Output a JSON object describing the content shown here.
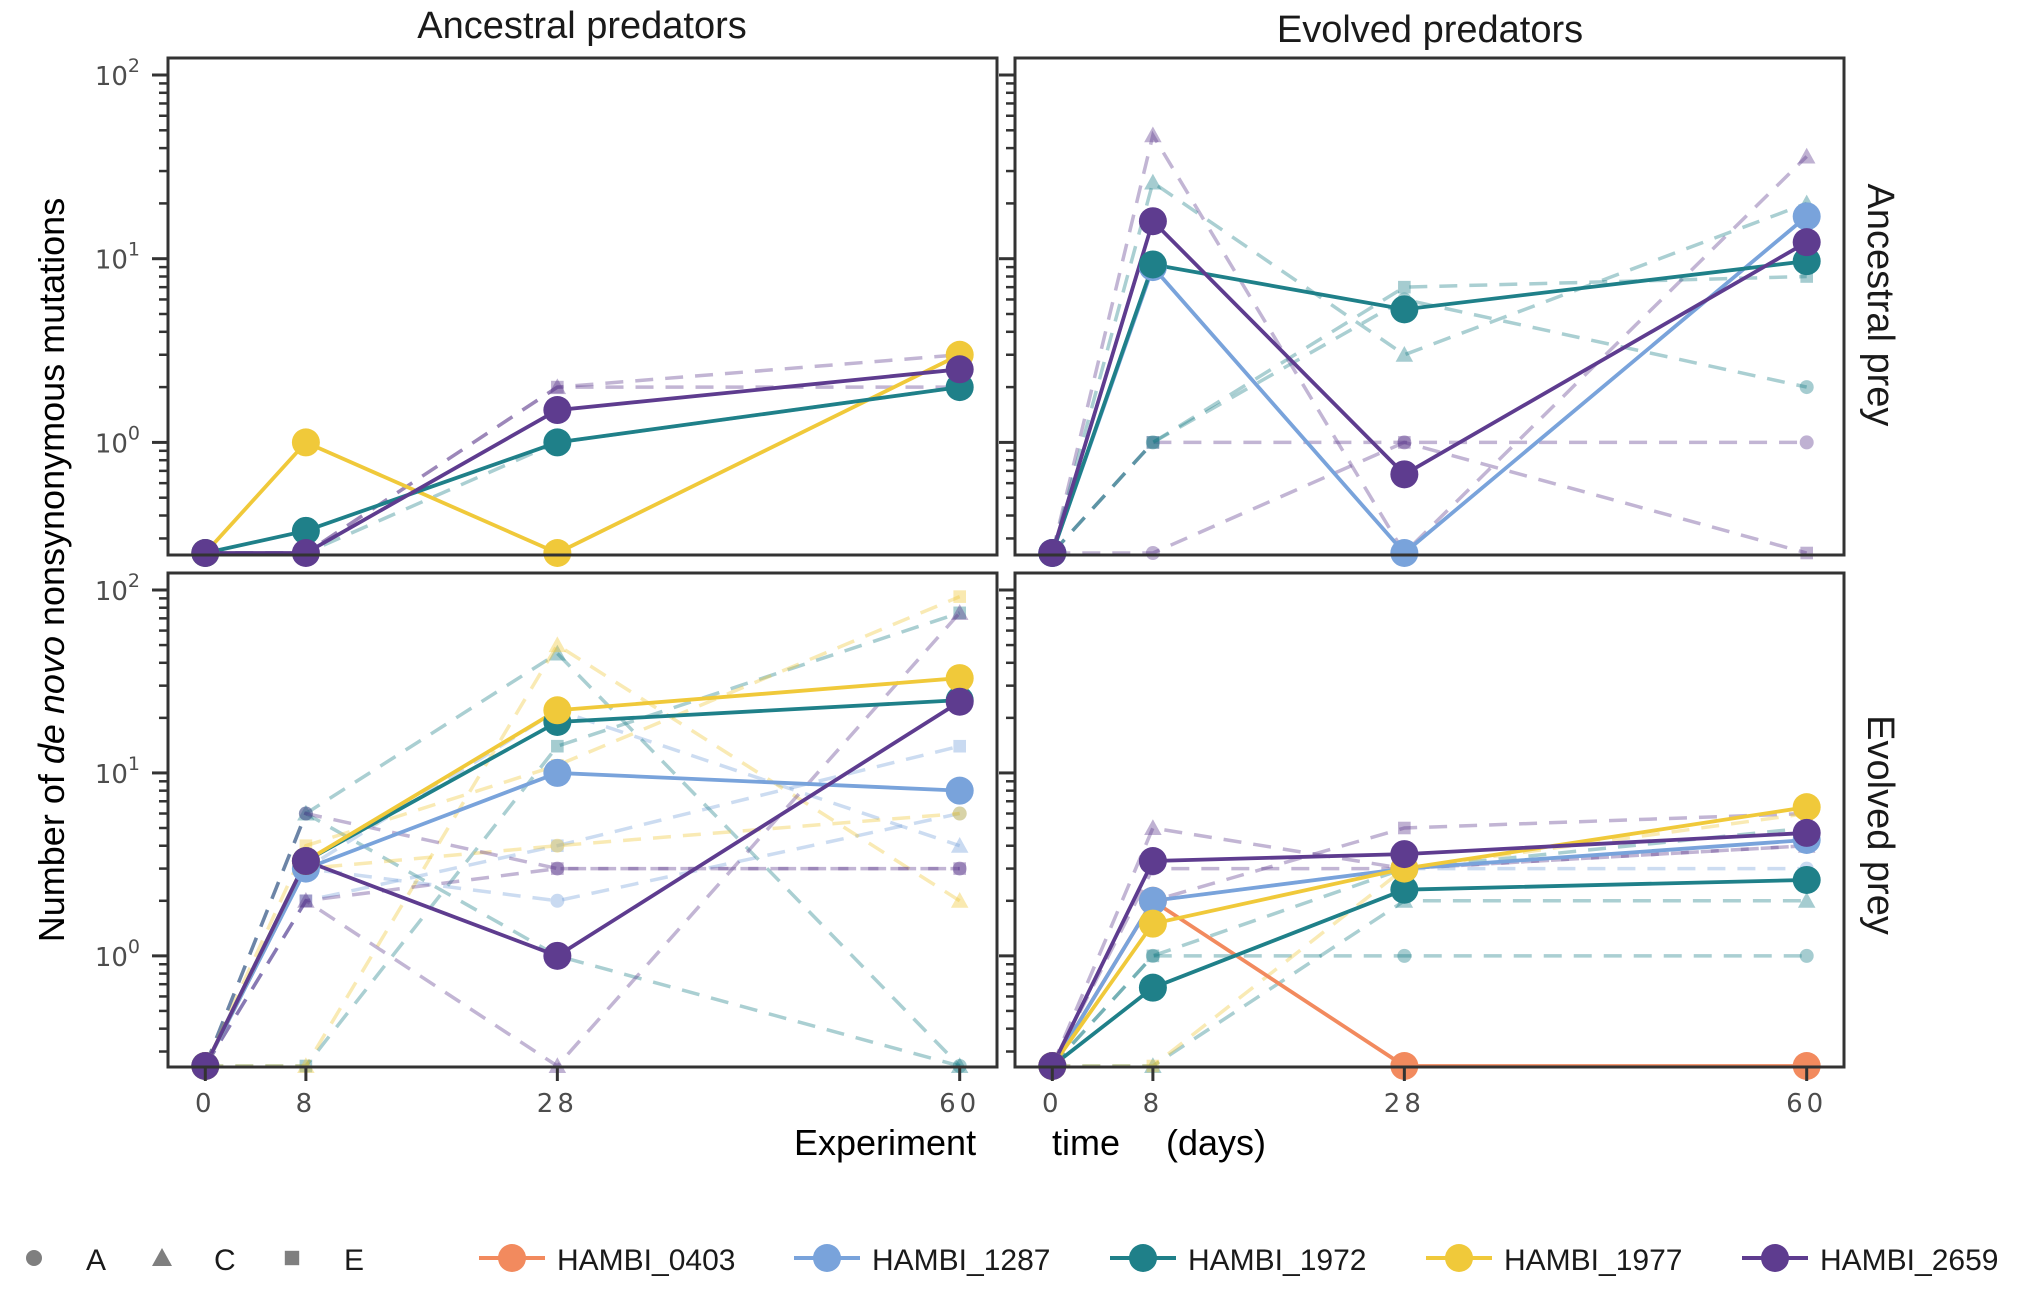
{
  "colors": {
    "HAMBI_0403": "#f28a5e",
    "HAMBI_1287": "#79a3db",
    "HAMBI_1972": "#1f8089",
    "HAMBI_1977": "#f0c93a",
    "HAMBI_2659": "#5e3c8f",
    "panel_border": "#333333",
    "tick": "#333333"
  },
  "chart_data": {
    "type": "line",
    "yscale": "log",
    "ylim": [
      0.25,
      100
    ],
    "xlim": [
      0,
      60
    ],
    "x_ticks": [
      "0",
      "8",
      "28",
      "60"
    ],
    "y_ticks": [
      {
        "base": "10",
        "exp": "0"
      },
      {
        "base": "10",
        "exp": "1"
      },
      {
        "base": "10",
        "exp": "2"
      }
    ],
    "xlabel": [
      "Experiment",
      "time",
      "(days)"
    ],
    "ylabel_parts": [
      "Number of ",
      "de novo",
      " nonsynonymous mutations"
    ],
    "col_labels": [
      "Ancestral predators",
      "Evolved predators"
    ],
    "row_labels": [
      "Ancestral prey",
      "Evolved prey"
    ],
    "shape_legend": [
      {
        "shape": "circle",
        "label": "A"
      },
      {
        "shape": "triangle",
        "label": "C"
      },
      {
        "shape": "square",
        "label": "E"
      }
    ],
    "series_legend": [
      "HAMBI_0403",
      "HAMBI_1287",
      "HAMBI_1972",
      "HAMBI_1977",
      "HAMBI_2659"
    ],
    "panels": [
      {
        "row": 0,
        "col": 0,
        "means": [
          {
            "name": "HAMBI_1977",
            "x": [
              0,
              8,
              28,
              60
            ],
            "y": [
              0.25,
              1,
              0.25,
              3
            ]
          },
          {
            "name": "HAMBI_1972",
            "x": [
              0,
              8,
              28,
              60
            ],
            "y": [
              0.25,
              0.33,
              1,
              2
            ]
          },
          {
            "name": "HAMBI_2659",
            "x": [
              0,
              8,
              28,
              60
            ],
            "y": [
              0.25,
              0.25,
              1.5,
              2.5
            ]
          }
        ],
        "replicates": [
          {
            "name": "HAMBI_2659",
            "rep": "C",
            "x": [
              0,
              8,
              28,
              60
            ],
            "y": [
              0.25,
              0.25,
              2,
              2
            ]
          },
          {
            "name": "HAMBI_2659",
            "rep": "E",
            "x": [
              0,
              8,
              28,
              60
            ],
            "y": [
              0.25,
              0.25,
              2,
              3
            ]
          },
          {
            "name": "HAMBI_1972",
            "rep": "A",
            "x": [
              0,
              8,
              28,
              60
            ],
            "y": [
              0.25,
              0.25,
              1,
              2
            ]
          }
        ]
      },
      {
        "row": 0,
        "col": 1,
        "means": [
          {
            "name": "HAMBI_1287",
            "x": [
              0,
              8,
              28,
              60
            ],
            "y": [
              0.25,
              9,
              0.25,
              17
            ]
          },
          {
            "name": "HAMBI_1972",
            "x": [
              0,
              8,
              28,
              60
            ],
            "y": [
              0.25,
              9.3,
              5.3,
              9.7
            ]
          },
          {
            "name": "HAMBI_2659",
            "x": [
              0,
              8,
              28,
              60
            ],
            "y": [
              0.25,
              16,
              0.67,
              12.3
            ]
          }
        ],
        "replicates": [
          {
            "name": "HAMBI_2659",
            "rep": "A",
            "x": [
              0,
              8,
              28,
              60
            ],
            "y": [
              0.25,
              0.25,
              1,
              1
            ]
          },
          {
            "name": "HAMBI_2659",
            "rep": "C",
            "x": [
              0,
              8,
              28,
              60
            ],
            "y": [
              0.25,
              47,
              0.25,
              36
            ]
          },
          {
            "name": "HAMBI_2659",
            "rep": "E",
            "x": [
              0,
              8,
              28,
              60
            ],
            "y": [
              0.25,
              1,
              1,
              0.25
            ]
          },
          {
            "name": "HAMBI_1972",
            "rep": "A",
            "x": [
              0,
              8,
              28,
              60
            ],
            "y": [
              0.25,
              1,
              6,
              2
            ]
          },
          {
            "name": "HAMBI_1972",
            "rep": "C",
            "x": [
              0,
              8,
              28,
              60
            ],
            "y": [
              0.25,
              26,
              3,
              20
            ]
          },
          {
            "name": "HAMBI_1972",
            "rep": "E",
            "x": [
              0,
              8,
              28,
              60
            ],
            "y": [
              0.25,
              1,
              7,
              8
            ]
          }
        ]
      },
      {
        "row": 1,
        "col": 0,
        "means": [
          {
            "name": "HAMBI_1287",
            "x": [
              0,
              8,
              28,
              60
            ],
            "y": [
              0.25,
              3,
              10,
              8
            ]
          },
          {
            "name": "HAMBI_1972",
            "x": [
              0,
              8,
              28,
              60
            ],
            "y": [
              0.25,
              3.3,
              19,
              25
            ]
          },
          {
            "name": "HAMBI_1977",
            "x": [
              0,
              8,
              28,
              60
            ],
            "y": [
              0.25,
              3.3,
              22,
              33
            ]
          },
          {
            "name": "HAMBI_2659",
            "x": [
              0,
              8,
              28,
              60
            ],
            "y": [
              0.25,
              3.3,
              1,
              24.5
            ]
          }
        ],
        "replicates": [
          {
            "name": "HAMBI_1287",
            "rep": "A",
            "x": [
              0,
              8,
              28,
              60
            ],
            "y": [
              0.25,
              3,
              2,
              6
            ]
          },
          {
            "name": "HAMBI_1287",
            "rep": "C",
            "x": [
              0,
              8,
              28,
              60
            ],
            "y": [
              0.25,
              3,
              22,
              4
            ]
          },
          {
            "name": "HAMBI_1287",
            "rep": "E",
            "x": [
              0,
              8,
              28,
              60
            ],
            "y": [
              0.25,
              2,
              4,
              14
            ]
          },
          {
            "name": "HAMBI_1972",
            "rep": "A",
            "x": [
              0,
              8,
              28,
              60
            ],
            "y": [
              0.25,
              6,
              1,
              0.25
            ]
          },
          {
            "name": "HAMBI_1972",
            "rep": "C",
            "x": [
              0,
              8,
              28,
              60
            ],
            "y": [
              0.25,
              6,
              45,
              0.25
            ]
          },
          {
            "name": "HAMBI_1972",
            "rep": "E",
            "x": [
              0,
              8,
              28,
              60
            ],
            "y": [
              0.25,
              0.25,
              14,
              75
            ]
          },
          {
            "name": "HAMBI_1977",
            "rep": "A",
            "x": [
              0,
              8,
              28,
              60
            ],
            "y": [
              0.25,
              3,
              4,
              6
            ]
          },
          {
            "name": "HAMBI_1977",
            "rep": "C",
            "x": [
              0,
              8,
              28,
              60
            ],
            "y": [
              0.25,
              0.25,
              50,
              2
            ]
          },
          {
            "name": "HAMBI_1977",
            "rep": "E",
            "x": [
              0,
              8,
              28,
              60
            ],
            "y": [
              0.25,
              4,
              11,
              92
            ]
          },
          {
            "name": "HAMBI_2659",
            "rep": "A",
            "x": [
              0,
              8,
              28,
              60
            ],
            "y": [
              0.25,
              6,
              3,
              3
            ]
          },
          {
            "name": "HAMBI_2659",
            "rep": "C",
            "x": [
              0,
              8,
              28,
              60
            ],
            "y": [
              0.25,
              2,
              0.25,
              75
            ]
          },
          {
            "name": "HAMBI_2659",
            "rep": "E",
            "x": [
              0,
              8,
              28,
              60
            ],
            "y": [
              0.25,
              2,
              3,
              3
            ]
          }
        ]
      },
      {
        "row": 1,
        "col": 1,
        "means": [
          {
            "name": "HAMBI_0403",
            "x": [
              0,
              8,
              28,
              60
            ],
            "y": [
              0.25,
              2,
              0.25,
              0.25
            ]
          },
          {
            "name": "HAMBI_1287",
            "x": [
              0,
              8,
              28,
              60
            ],
            "y": [
              0.25,
              2,
              3,
              4.3
            ]
          },
          {
            "name": "HAMBI_1972",
            "x": [
              0,
              8,
              28,
              60
            ],
            "y": [
              0.25,
              0.67,
              2.3,
              2.6
            ]
          },
          {
            "name": "HAMBI_1977",
            "x": [
              0,
              8,
              28,
              60
            ],
            "y": [
              0.25,
              1.5,
              3,
              6.5
            ]
          },
          {
            "name": "HAMBI_2659",
            "x": [
              0,
              8,
              28,
              60
            ],
            "y": [
              0.25,
              3.3,
              3.6,
              4.7
            ]
          }
        ],
        "replicates": [
          {
            "name": "HAMBI_2659",
            "rep": "A",
            "x": [
              0,
              8,
              28,
              60
            ],
            "y": [
              0.25,
              3,
              3,
              4
            ]
          },
          {
            "name": "HAMBI_2659",
            "rep": "C",
            "x": [
              0,
              8,
              28,
              60
            ],
            "y": [
              0.25,
              5,
              3,
              4
            ]
          },
          {
            "name": "HAMBI_2659",
            "rep": "E",
            "x": [
              0,
              8,
              28,
              60
            ],
            "y": [
              0.25,
              2,
              5,
              6
            ]
          },
          {
            "name": "HAMBI_1972",
            "rep": "A",
            "x": [
              0,
              8,
              28,
              60
            ],
            "y": [
              0.25,
              1,
              1,
              1
            ]
          },
          {
            "name": "HAMBI_1972",
            "rep": "C",
            "x": [
              0,
              8,
              28,
              60
            ],
            "y": [
              0.25,
              0.25,
              2,
              2
            ]
          },
          {
            "name": "HAMBI_1972",
            "rep": "E",
            "x": [
              0,
              8,
              28,
              60
            ],
            "y": [
              0.25,
              1,
              3,
              5
            ]
          },
          {
            "name": "HAMBI_1977",
            "rep": "E",
            "x": [
              0,
              8,
              28,
              60
            ],
            "y": [
              0.25,
              0.25,
              3,
              6
            ]
          },
          {
            "name": "HAMBI_1287",
            "rep": "A",
            "x": [
              0,
              8,
              28,
              60
            ],
            "y": [
              0.25,
              2,
              3,
              3
            ]
          }
        ]
      }
    ]
  }
}
